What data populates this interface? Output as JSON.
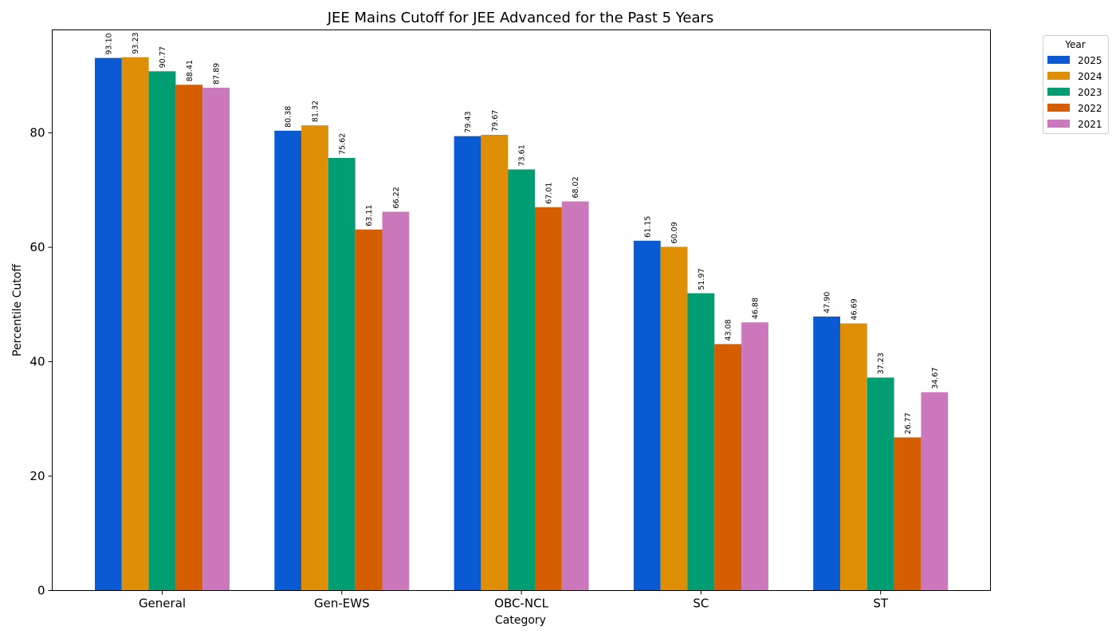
{
  "chart_data": {
    "type": "bar",
    "title": "JEE Mains Cutoff for JEE Advanced for the Past 5 Years",
    "xlabel": "Category",
    "ylabel": "Percentile Cutoff",
    "ylim": [
      0,
      98
    ],
    "yticks": [
      0,
      20,
      40,
      60,
      80
    ],
    "grid": false,
    "categories": [
      "General",
      "Gen-EWS",
      "OBC-NCL",
      "SC",
      "ST"
    ],
    "series": [
      {
        "name": "2025",
        "color": "#0a5ad4",
        "values": [
          93.1,
          80.38,
          79.43,
          61.15,
          47.9
        ],
        "labels": [
          "93.10",
          "80.38",
          "79.43",
          "61.15",
          "47.90"
        ]
      },
      {
        "name": "2024",
        "color": "#de8f05",
        "values": [
          93.23,
          81.32,
          79.67,
          60.09,
          46.69
        ],
        "labels": [
          "93.23",
          "81.32",
          "79.67",
          "60.09",
          "46.69"
        ]
      },
      {
        "name": "2023",
        "color": "#029e73",
        "values": [
          90.77,
          75.62,
          73.61,
          51.97,
          37.23
        ],
        "labels": [
          "90.77",
          "75.62",
          "73.61",
          "51.97",
          "37.23"
        ]
      },
      {
        "name": "2022",
        "color": "#d55e00",
        "values": [
          88.41,
          63.11,
          67.01,
          43.08,
          26.77
        ],
        "labels": [
          "88.41",
          "63.11",
          "67.01",
          "43.08",
          "26.77"
        ]
      },
      {
        "name": "2021",
        "color": "#cc78bc",
        "values": [
          87.89,
          66.22,
          68.02,
          46.88,
          34.67
        ],
        "labels": [
          "87.89",
          "66.22",
          "68.02",
          "46.88",
          "34.67"
        ]
      }
    ],
    "legend": {
      "title": "Year",
      "placement": "outside-top-right"
    }
  }
}
